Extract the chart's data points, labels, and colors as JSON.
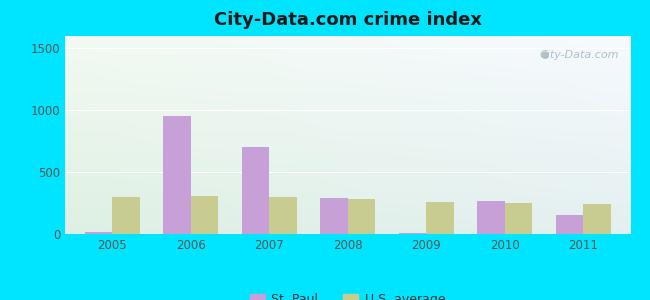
{
  "years": [
    2005,
    2006,
    2007,
    2008,
    2009,
    2010,
    2011
  ],
  "st_paul": [
    20,
    950,
    700,
    290,
    10,
    270,
    150
  ],
  "us_avg": [
    300,
    310,
    300,
    285,
    255,
    250,
    245
  ],
  "st_paul_color": "#c8a0d8",
  "us_avg_color": "#c8cc90",
  "title": "City-Data.com crime index",
  "title_fontsize": 13,
  "ylabel_ticks": [
    0,
    500,
    1000,
    1500
  ],
  "ylim": [
    0,
    1600
  ],
  "bar_width": 0.35,
  "background_color": "#00e5ff",
  "watermark_text": "City-Data.com",
  "watermark_color": "#a8bcc0",
  "legend_st_paul": "St. Paul",
  "legend_us_avg": "U.S. average",
  "grid_color": "#e0e8e0",
  "bg_gradient_colors": [
    "#e8f5e8",
    "#d8eedd",
    "#e0f0ec",
    "#e8f8f0"
  ],
  "tick_color": "#555555",
  "label_fontsize": 8.5
}
